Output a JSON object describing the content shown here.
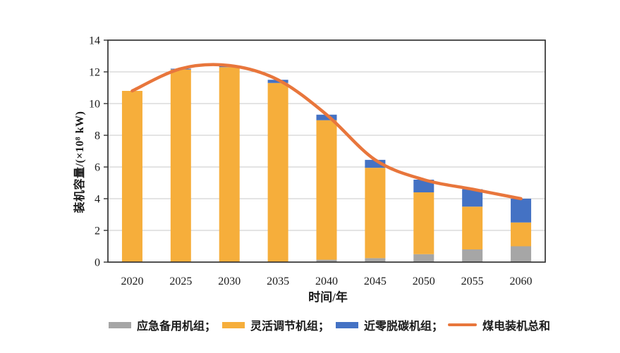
{
  "chart_data": {
    "type": "bar",
    "stacked": true,
    "title": "",
    "xlabel": "时间/年",
    "ylabel": "装机容量/(×10⁸ kW)",
    "ylim": [
      0,
      14
    ],
    "yticks": [
      0,
      2,
      4,
      6,
      8,
      10,
      12,
      14
    ],
    "ytick_labels": [
      "0",
      "2",
      "4",
      "6",
      "8",
      "10",
      "12",
      "14"
    ],
    "grid": true,
    "categories": [
      "2020",
      "2025",
      "2030",
      "2035",
      "2040",
      "2045",
      "2050",
      "2055",
      "2060"
    ],
    "series": [
      {
        "id": "emergency-backup-units",
        "name": "应急备用机组",
        "color": "#A6A6A6",
        "values": [
          0,
          0,
          0,
          0,
          0.15,
          0.25,
          0.5,
          0.8,
          1.0
        ]
      },
      {
        "id": "flexible-regulation-units",
        "name": "灵活调节机组",
        "color": "#F6AE3B",
        "values": [
          10.8,
          12.15,
          12.3,
          11.3,
          8.8,
          5.7,
          3.9,
          2.7,
          1.5
        ]
      },
      {
        "id": "near-zero-decarbonization-units",
        "name": "近零脱碳机组",
        "color": "#4472C4",
        "values": [
          0,
          0.05,
          0.1,
          0.2,
          0.35,
          0.5,
          0.8,
          1.1,
          1.5
        ]
      }
    ],
    "line_series": {
      "id": "coal-power-total",
      "name": "煤电装机总和",
      "color": "#E8763C",
      "values": [
        10.8,
        12.2,
        12.4,
        11.5,
        9.3,
        6.45,
        5.2,
        4.6,
        4.0
      ]
    },
    "legend": [
      {
        "id": "emergency-backup-units",
        "label": "应急备用机组；",
        "swatch": "rect",
        "color": "#A6A6A6"
      },
      {
        "id": "flexible-regulation-units",
        "label": "灵活调节机组；",
        "swatch": "rect",
        "color": "#F6AE3B"
      },
      {
        "id": "near-zero-decarbonization-units",
        "label": "近零脱碳机组；",
        "swatch": "rect",
        "color": "#4472C4"
      },
      {
        "id": "coal-power-total",
        "label": "煤电装机总和",
        "swatch": "line",
        "color": "#E8763C"
      }
    ],
    "legend_position": "bottom",
    "colors": {
      "grid": "#C9C9C9",
      "frame": "#333333",
      "text": "#1A1A1A",
      "background": "#FFFFFF"
    }
  }
}
